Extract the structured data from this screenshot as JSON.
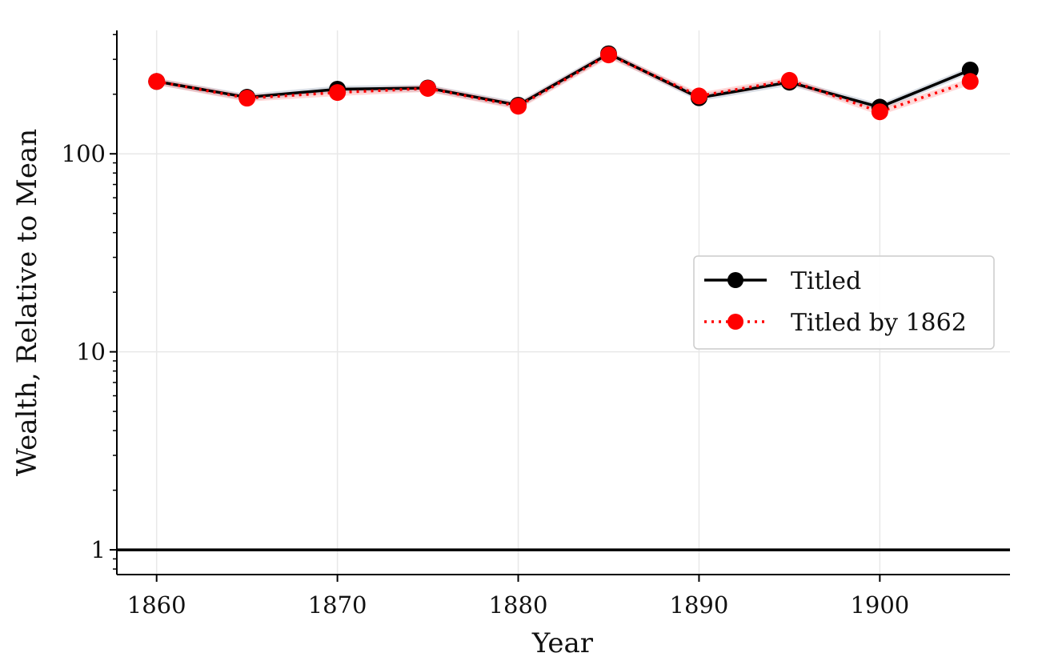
{
  "chart_data": {
    "type": "line",
    "xlabel": "Year",
    "ylabel": "Wealth, Relative to Mean",
    "x": [
      1860,
      1865,
      1870,
      1875,
      1880,
      1885,
      1890,
      1895,
      1900,
      1905
    ],
    "xlim": [
      1857.8,
      1907.2
    ],
    "ylim": [
      0.75,
      420
    ],
    "yscale": "log",
    "x_ticks": [
      "1860",
      "1870",
      "1880",
      "1890",
      "1900"
    ],
    "y_ticks": [
      "1",
      "10",
      "100"
    ],
    "reference_line": 1,
    "grid": true,
    "legend_position": "center-right",
    "series": [
      {
        "name": "Titled",
        "values": [
          232,
          193,
          212,
          215,
          176,
          320,
          192,
          230,
          172,
          265
        ],
        "color": "#000000",
        "line_style": "solid",
        "marker": "circle"
      },
      {
        "name": "Titled by 1862",
        "values": [
          232,
          191,
          204,
          214,
          174,
          316,
          196,
          235,
          163,
          232
        ],
        "color": "#ff0000",
        "line_style": "dotted",
        "marker": "circle"
      }
    ]
  }
}
